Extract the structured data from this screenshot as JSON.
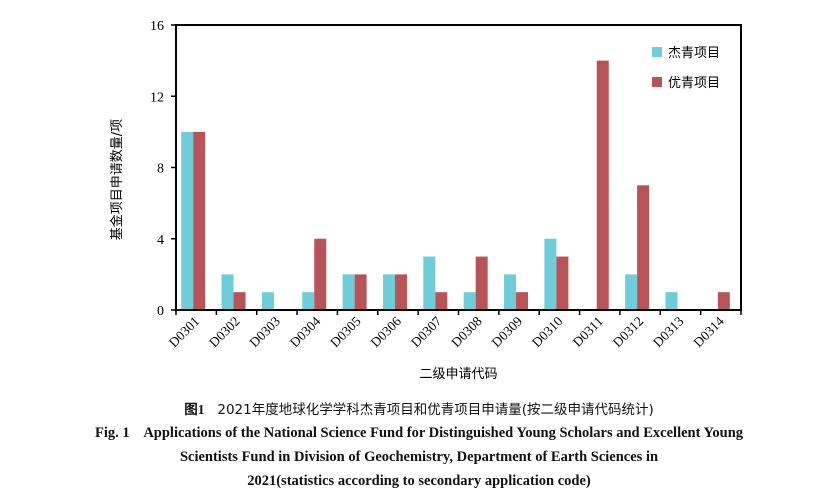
{
  "chart_data": {
    "type": "bar",
    "title": "",
    "xlabel": "二级申请代码",
    "ylabel": "基金项目申请数量/项",
    "ylim": [
      0,
      16
    ],
    "yticks": [
      0,
      4,
      8,
      12,
      16
    ],
    "grid": false,
    "legend_position": "top-right",
    "categories": [
      "D0301",
      "D0302",
      "D0303",
      "D0304",
      "D0305",
      "D0306",
      "D0307",
      "D0308",
      "D0309",
      "D0310",
      "D0311",
      "D0312",
      "D0313",
      "D0314"
    ],
    "series": [
      {
        "name": "杰青项目",
        "color": "#6ecdd9",
        "values": [
          10,
          2,
          1,
          1,
          2,
          2,
          3,
          1,
          2,
          4,
          0,
          2,
          1,
          0
        ]
      },
      {
        "name": "优青项目",
        "color": "#b85457",
        "values": [
          10,
          1,
          0,
          4,
          2,
          2,
          1,
          3,
          1,
          3,
          14,
          7,
          0,
          1
        ]
      }
    ]
  },
  "caption": {
    "cn_label": "图1",
    "cn_text": "2021年度地球化学学科杰青项目和优青项目申请量(按二级申请代码统计)",
    "en_line1": "Fig. 1    Applications of the National Science Fund for Distinguished Young Scholars and Excellent Young",
    "en_line2": "Scientists Fund in Division of Geochemistry, Department of Earth Sciences in",
    "en_line3": "2021(statistics according to secondary application code)"
  }
}
